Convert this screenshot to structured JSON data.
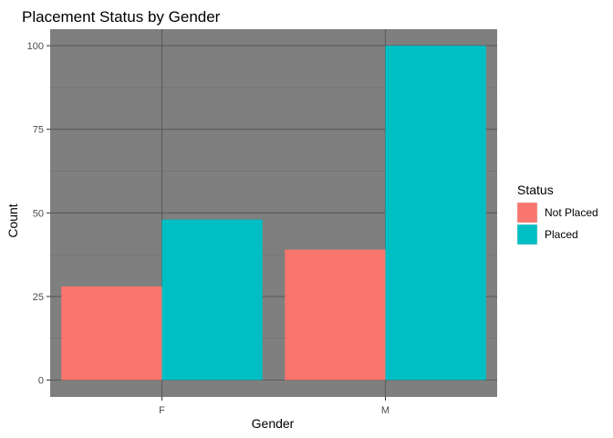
{
  "chart_data": {
    "type": "bar",
    "title": "Placement Status by Gender",
    "xlabel": "Gender",
    "ylabel": "Count",
    "categories": [
      "F",
      "M"
    ],
    "series": [
      {
        "name": "Not Placed",
        "color": "#F8766D",
        "values": [
          28,
          39
        ]
      },
      {
        "name": "Placed",
        "color": "#00BFC4",
        "values": [
          48,
          100
        ]
      }
    ],
    "ylim": [
      0,
      105
    ],
    "yticks": [
      0,
      25,
      50,
      75,
      100
    ],
    "grid": true,
    "panel_background": "#7F7F7F",
    "legend": {
      "title": "Status",
      "position": "right"
    }
  }
}
